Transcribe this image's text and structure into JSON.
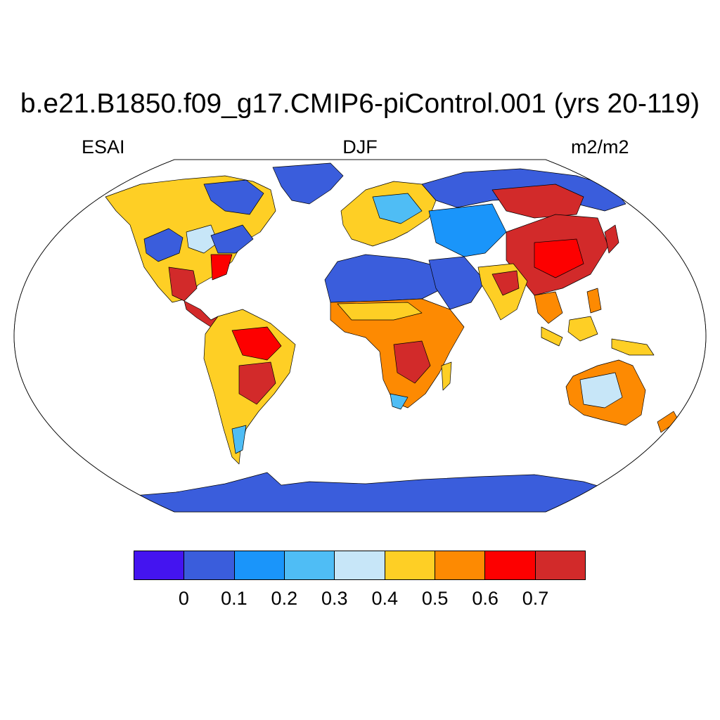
{
  "title": "b.e21.B1850.f09_g17.CMIP6-piControl.001 (yrs 20-119)",
  "subtitle_left": "ESAI",
  "subtitle_center": "DJF",
  "subtitle_right": "m2/m2",
  "colorbar": {
    "colors": [
      "#4414f0",
      "#3a5ddc",
      "#1a95fa",
      "#4fbdf5",
      "#c7e6f8",
      "#fecf25",
      "#fd8a02",
      "#fd0000",
      "#d22a2a"
    ],
    "labels": [
      "0",
      "0.1",
      "0.2",
      "0.3",
      "0.4",
      "0.5",
      "0.6",
      "0.7"
    ]
  },
  "map_colors": {
    "ocean": "#ffffff",
    "low": "#3a5ddc",
    "light_blue": "#4fbdf5",
    "pale": "#c7e6f8",
    "yellow": "#fecf25",
    "orange": "#fd8a02",
    "red": "#fd0000",
    "dark_red": "#d22a2a"
  }
}
